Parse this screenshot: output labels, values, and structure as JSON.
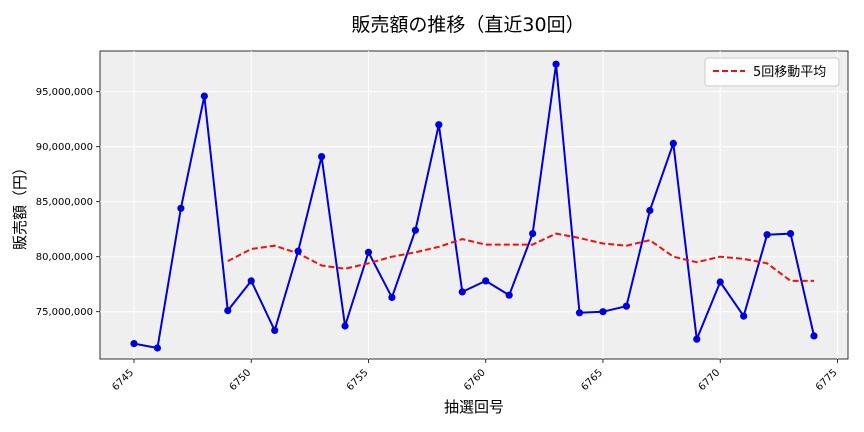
{
  "chart_data": {
    "type": "line",
    "title": "販売額の推移（直近30回）",
    "xlabel": "抽選回号",
    "ylabel": "販売額（円）",
    "xlim": [
      6743.55,
      6775.45
    ],
    "ylim": [
      70700000,
      98700000
    ],
    "x_ticks": [
      6745,
      6750,
      6755,
      6760,
      6765,
      6770,
      6775
    ],
    "y_ticks": [
      75000000,
      80000000,
      85000000,
      90000000,
      95000000
    ],
    "y_tick_labels": [
      "75,000,000",
      "80,000,000",
      "85,000,000",
      "90,000,000",
      "95,000,000"
    ],
    "grid": true,
    "legend_position": "upper right",
    "x": [
      6745,
      6746,
      6747,
      6748,
      6749,
      6750,
      6751,
      6752,
      6753,
      6754,
      6755,
      6756,
      6757,
      6758,
      6759,
      6760,
      6761,
      6762,
      6763,
      6764,
      6765,
      6766,
      6767,
      6768,
      6769,
      6770,
      6771,
      6772,
      6773,
      6774
    ],
    "series": [
      {
        "name": "",
        "color": "#0000dd",
        "style": "solid-markers",
        "values": [
          72100000,
          71700000,
          84400000,
          94600000,
          75100000,
          77800000,
          73300000,
          80500000,
          89100000,
          73700000,
          80400000,
          76300000,
          82400000,
          92000000,
          76800000,
          77800000,
          76500000,
          82100000,
          97500000,
          74900000,
          75000000,
          75500000,
          84200000,
          90300000,
          72500000,
          77700000,
          74600000,
          82000000,
          82100000,
          72800000
        ]
      },
      {
        "name": "5回移動平均",
        "color": "#ee1111",
        "style": "dashed",
        "x": [
          6749,
          6750,
          6751,
          6752,
          6753,
          6754,
          6755,
          6756,
          6757,
          6758,
          6759,
          6760,
          6761,
          6762,
          6763,
          6764,
          6765,
          6766,
          6767,
          6768,
          6769,
          6770,
          6771,
          6772,
          6773,
          6774
        ],
        "values": [
          79600000,
          80700000,
          81000000,
          80300000,
          79200000,
          78900000,
          79400000,
          80000000,
          80400000,
          80900000,
          81600000,
          81100000,
          81100000,
          81100000,
          82100000,
          81700000,
          81200000,
          81000000,
          81500000,
          80000000,
          79500000,
          80000000,
          79800000,
          79400000,
          77800000,
          77800000
        ]
      }
    ]
  }
}
